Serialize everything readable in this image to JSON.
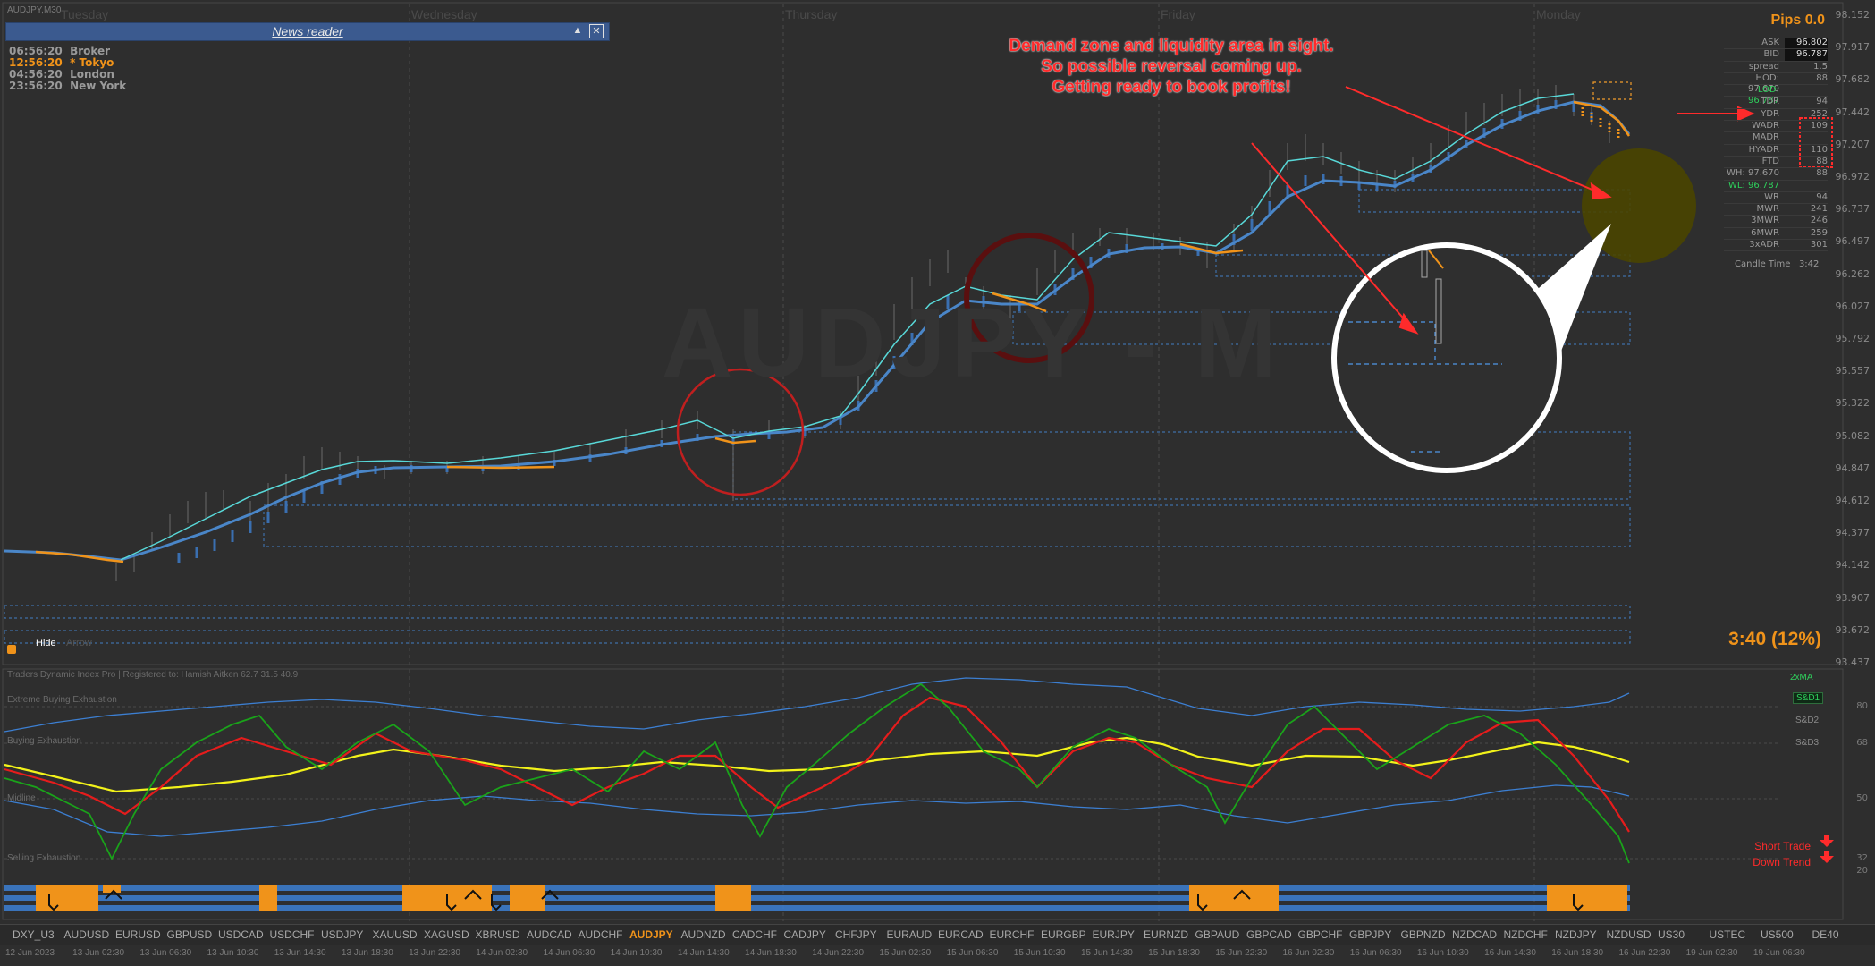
{
  "window_title": "AUDJPY,M30",
  "watermark": "AUDJPY - M",
  "day_labels": [
    "Tuesday",
    "Wednesday",
    "Thursday",
    "Friday",
    "Monday"
  ],
  "news_reader": {
    "title": "News reader",
    "minimize_icon": "triangle-up-icon",
    "close_icon": "close-box-icon"
  },
  "clocks": [
    {
      "time": "06:56:20",
      "city": "Broker",
      "active": false
    },
    {
      "time": "12:56:20",
      "city": "* Tokyo",
      "active": true
    },
    {
      "time": "04:56:20",
      "city": "London",
      "active": false
    },
    {
      "time": "23:56:20",
      "city": "New York",
      "active": false
    }
  ],
  "annotation": {
    "line1": "Demand zone and liquidity area in sight.",
    "line2": "So possible reversal coming up.",
    "line3": "Getting ready to book profits!"
  },
  "pips": "Pips 0.0",
  "stats": [
    {
      "k": "ASK",
      "v": "96.802"
    },
    {
      "k": "BID",
      "v": "96.787"
    },
    {
      "k": "spread",
      "v": "1.5"
    },
    {
      "k": "HOD: 97.670",
      "v": "88"
    },
    {
      "k": "LOD: 96.787",
      "v": ""
    },
    {
      "k": "TDR",
      "v": "94"
    },
    {
      "k": "YDR",
      "v": "252"
    },
    {
      "k": "WADR",
      "v": "109"
    },
    {
      "k": "MADR",
      "v": ""
    },
    {
      "k": "HYADR",
      "v": "110"
    },
    {
      "k": "FTD",
      "v": "88"
    },
    {
      "k": "WH: 97.670",
      "v": "88"
    },
    {
      "k": "WL: 96.787",
      "v": ""
    },
    {
      "k": "WR",
      "v": "94"
    },
    {
      "k": "MWR",
      "v": "241"
    },
    {
      "k": "3MWR",
      "v": "246"
    },
    {
      "k": "6MWR",
      "v": "259"
    },
    {
      "k": "3xADR",
      "v": "301"
    }
  ],
  "candle_time": {
    "label": "Candle Time",
    "value": "3:42"
  },
  "price_ticks": [
    "98.152",
    "97.917",
    "97.682",
    "97.442",
    "97.207",
    "96.972",
    "96.737",
    "96.497",
    "96.262",
    "96.027",
    "95.792",
    "95.557",
    "95.322",
    "95.082",
    "94.847",
    "94.612",
    "94.377",
    "94.142",
    "93.907",
    "93.672",
    "93.437"
  ],
  "timer": "3:40 (12%)",
  "hide_label": "Hide",
  "arrow_label": "Arrow",
  "indicator_title": "Traders Dynamic Index Pro | Registered to: Hamish Aitken 62.7 31.5 40.9",
  "zones": [
    "Extreme Buying Exhaustion",
    "Buying Exhaustion",
    "Midline",
    "Selling Exhaustion"
  ],
  "legend": [
    "2xMA",
    "S&D1",
    "S&D2",
    "S&D3"
  ],
  "osc_ticks": [
    "80",
    "68",
    "50",
    "32",
    "20"
  ],
  "trade_labels": [
    "Short Trade",
    "Down Trend"
  ],
  "symbols": [
    "DXY_U3",
    "AUDUSD",
    "EURUSD",
    "GBPUSD",
    "USDCAD",
    "USDCHF",
    "USDJPY",
    "XAUUSD",
    "XAGUSD",
    "XBRUSD",
    "AUDCAD",
    "AUDCHF",
    "AUDJPY",
    "AUDNZD",
    "CADCHF",
    "CADJPY",
    "CHFJPY",
    "EURAUD",
    "EURCAD",
    "EURCHF",
    "EURGBP",
    "EURJPY",
    "EURNZD",
    "GBPAUD",
    "GBPCAD",
    "GBPCHF",
    "GBPJPY",
    "GBPNZD",
    "NZDCAD",
    "NZDCHF",
    "NZDJPY",
    "NZDUSD",
    "US30",
    "USTEC",
    "US500",
    "DE40"
  ],
  "active_symbol": "AUDJPY",
  "time_ticks": [
    "12 Jun 2023",
    "13 Jun 02:30",
    "13 Jun 06:30",
    "13 Jun 10:30",
    "13 Jun 14:30",
    "13 Jun 18:30",
    "13 Jun 22:30",
    "14 Jun 02:30",
    "14 Jun 06:30",
    "14 Jun 10:30",
    "14 Jun 14:30",
    "14 Jun 18:30",
    "14 Jun 22:30",
    "15 Jun 02:30",
    "15 Jun 06:30",
    "15 Jun 10:30",
    "15 Jun 14:30",
    "15 Jun 18:30",
    "15 Jun 22:30",
    "16 Jun 02:30",
    "16 Jun 06:30",
    "16 Jun 10:30",
    "16 Jun 14:30",
    "16 Jun 18:30",
    "16 Jun 22:30",
    "19 Jun 02:30",
    "19 Jun 06:30"
  ],
  "colors": {
    "accent": "#f0931a",
    "ma_blue": "#4a86c8",
    "ma_cyan": "#58d8d8",
    "annotation_red": "#ff2b2b",
    "tdi_green": "#1aa31a",
    "tdi_red": "#e51c1c",
    "tdi_yellow": "#f2f21a",
    "band_blue": "#3c7fd2"
  }
}
